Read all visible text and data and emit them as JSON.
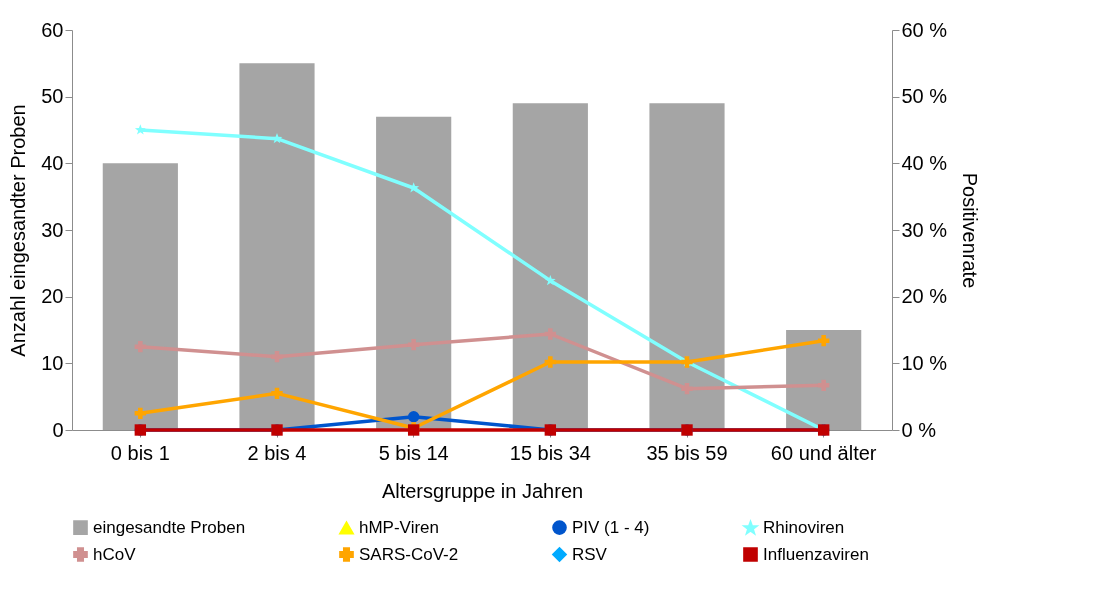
{
  "chart_data": {
    "type": "bar",
    "xlabel": "Altersgruppe in Jahren",
    "ylabel": "Anzahl eingesandter Proben",
    "y2label": "Positivenrate",
    "categories": [
      "0 bis 1",
      "2 bis 4",
      "5 bis 14",
      "15 bis 34",
      "35 bis 59",
      "60 und älter"
    ],
    "series": [
      {
        "name": "eingesandte Proben",
        "color": "#a5a5a5",
        "values": [
          40,
          55,
          47,
          49,
          49,
          15
        ]
      },
      {
        "name": "hMP-Viren",
        "type": "line",
        "axis": "y2",
        "marker": "triangle",
        "color": "#ffff00",
        "values": [
          null,
          null,
          null,
          null,
          null,
          null
        ]
      },
      {
        "name": "PIV (1 - 4)",
        "type": "line",
        "axis": "y2",
        "marker": "circle",
        "color": "#0055cc",
        "values": [
          0,
          0,
          2,
          0,
          0,
          0
        ]
      },
      {
        "name": "Rhinoviren",
        "type": "line",
        "axis": "y2",
        "marker": "star",
        "color": "#80ffff",
        "values": [
          45,
          43.7,
          36.3,
          22.4,
          10.2,
          0
        ]
      },
      {
        "name": "hCoV",
        "type": "line",
        "axis": "y2",
        "marker": "cross",
        "color": "#d09090",
        "values": [
          12.5,
          11,
          12.8,
          14.4,
          6.2,
          6.7
        ]
      },
      {
        "name": "SARS-CoV-2",
        "type": "line",
        "axis": "y2",
        "marker": "cross",
        "color": "#ffa500",
        "values": [
          2.5,
          5.5,
          0.3,
          10.2,
          10.2,
          13.4
        ]
      },
      {
        "name": "RSV",
        "type": "line",
        "axis": "y2",
        "marker": "diamond",
        "color": "#00aaff",
        "values": [
          null,
          null,
          null,
          null,
          null,
          null
        ]
      },
      {
        "name": "Influenzaviren",
        "type": "line",
        "axis": "y2",
        "marker": "square",
        "color": "#c00000",
        "values": [
          0,
          0,
          0,
          0,
          0,
          0
        ]
      }
    ],
    "ylim": [
      0,
      60
    ],
    "yticks": [
      0,
      10,
      20,
      30,
      40,
      50,
      60
    ],
    "y2lim": [
      0,
      60
    ],
    "y2ticks": [
      {
        "value": 0,
        "label": "0 %"
      },
      {
        "value": 10,
        "label": "10 %"
      },
      {
        "value": 20,
        "label": "20 %"
      },
      {
        "value": 30,
        "label": "30 %"
      },
      {
        "value": 40,
        "label": "40 %"
      },
      {
        "value": 50,
        "label": "50 %"
      },
      {
        "value": 60,
        "label": "60 %"
      }
    ],
    "grid": false,
    "legend": "bottom"
  }
}
